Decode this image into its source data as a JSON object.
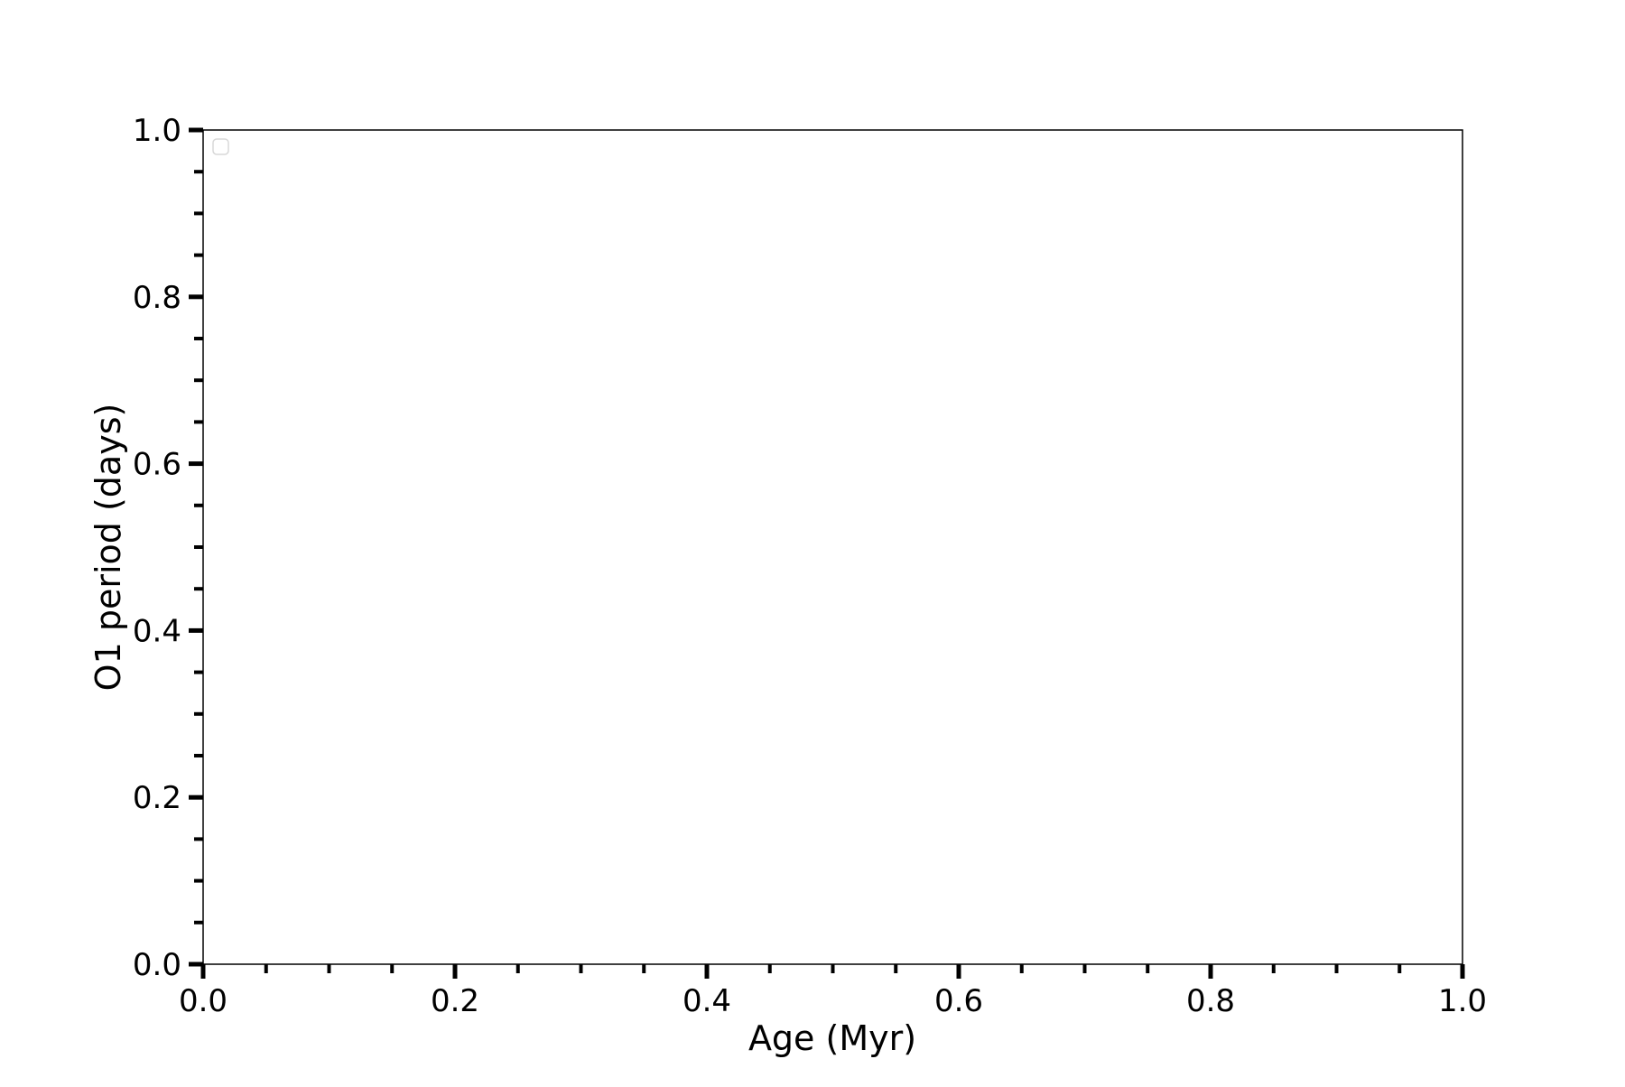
{
  "chart_data": {
    "type": "line",
    "title": "",
    "xlabel": "Age (Myr)",
    "ylabel": "O1 period (days)",
    "xlim": [
      0.0,
      1.0
    ],
    "ylim": [
      0.0,
      1.0
    ],
    "x_major_ticks": [
      "0.0",
      "0.2",
      "0.4",
      "0.6",
      "0.8",
      "1.0"
    ],
    "y_major_ticks": [
      "0.0",
      "0.2",
      "0.4",
      "0.6",
      "0.8",
      "1.0"
    ],
    "minor_tick_step": 0.05,
    "grid": false,
    "legend": {
      "placement": "top-left",
      "entries": []
    },
    "series": []
  }
}
